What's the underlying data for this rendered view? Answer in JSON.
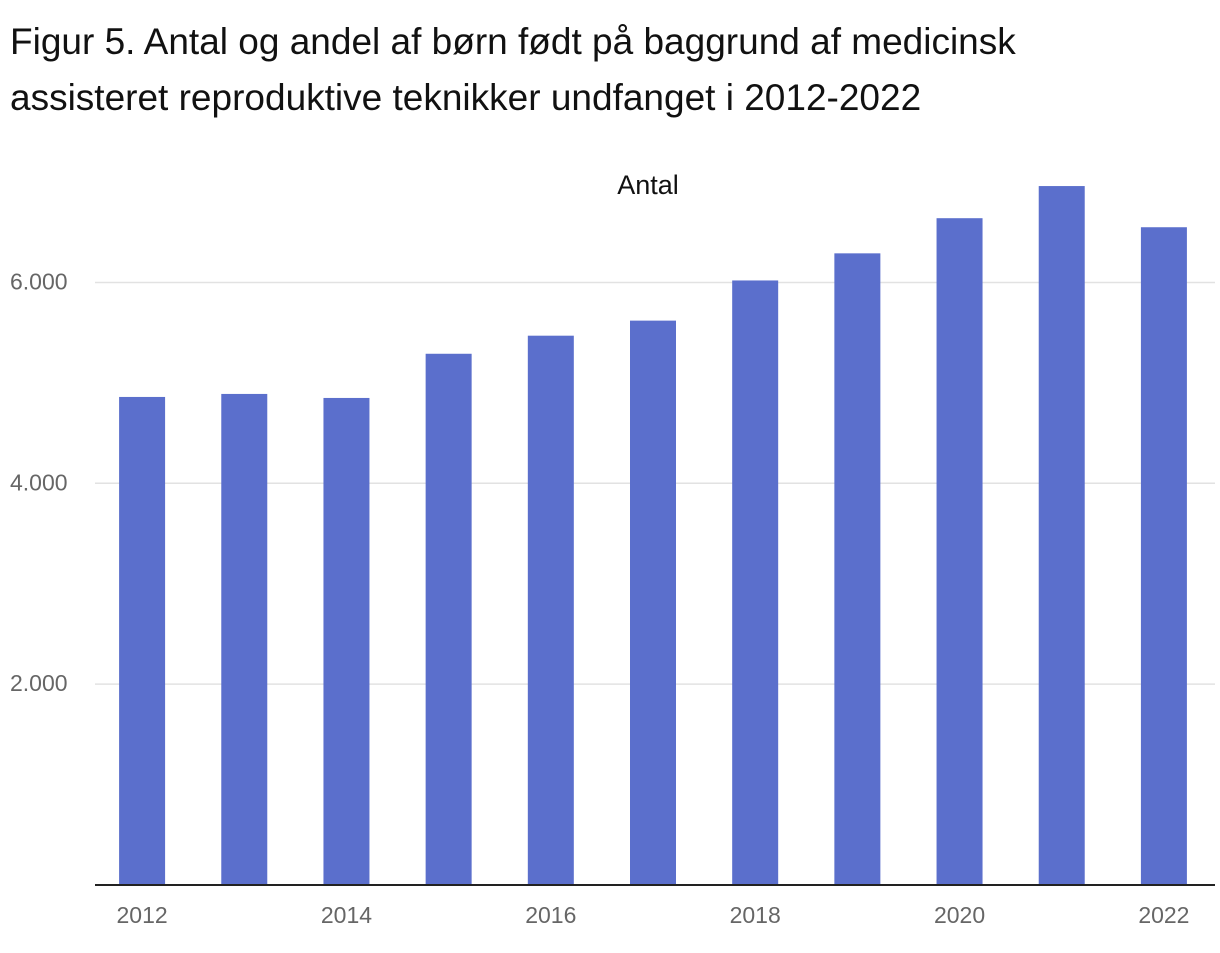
{
  "chart_data": {
    "type": "bar",
    "title": [
      "Figur 5. Antal og andel af børn født på baggrund af medicinsk",
      "assisteret reproduktive teknikker undfanget i 2012-2022"
    ],
    "subtitle": "Antal",
    "categories": [
      "2012",
      null,
      "2014",
      null,
      "2016",
      null,
      "2018",
      null,
      "2020",
      null,
      "2022"
    ],
    "values": [
      4860,
      4890,
      4850,
      5290,
      5470,
      5620,
      6020,
      6290,
      6640,
      6960,
      6550
    ],
    "color": "#5b6fcc",
    "ylim": [
      0,
      7100
    ],
    "yticks": [
      {
        "value": 2000,
        "label": "2.000"
      },
      {
        "value": 4000,
        "label": "4.000"
      },
      {
        "value": 6000,
        "label": "6.000"
      }
    ],
    "grid": true
  }
}
